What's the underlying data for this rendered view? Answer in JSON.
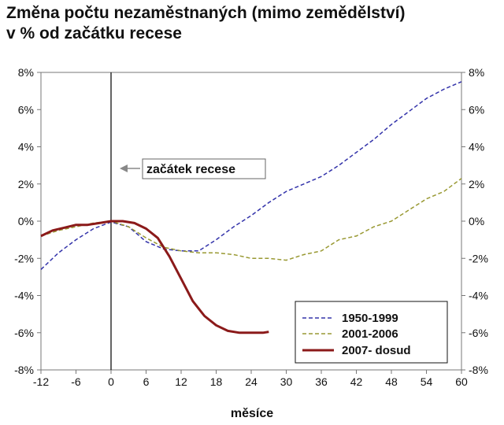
{
  "chart_data": {
    "type": "line",
    "title": "Změna počtu nezaměstnaných (mimo zemědělství)",
    "subtitle": "v % od začátku recese",
    "xlabel": "měsíce",
    "ylabel": "",
    "xlim": [
      -12,
      60
    ],
    "ylim": [
      -8,
      8
    ],
    "x_ticks": [
      -12,
      -6,
      0,
      6,
      12,
      18,
      24,
      30,
      36,
      42,
      48,
      54,
      60
    ],
    "x_tick_labels": [
      "-12",
      "-6",
      "0",
      "6",
      "12",
      "18",
      "24",
      "30",
      "36",
      "42",
      "48",
      "54",
      "60"
    ],
    "y_ticks": [
      -8,
      -6,
      -4,
      -2,
      0,
      2,
      4,
      6,
      8
    ],
    "y_tick_labels": [
      "-8%",
      "-6%",
      "-4%",
      "-2%",
      "0%",
      "2%",
      "4%",
      "6%",
      "8%"
    ],
    "grid": false,
    "legend_position": "bottom-right",
    "annotation": {
      "text": "začátek recese",
      "x": 0
    },
    "series": [
      {
        "name": "1950-1999",
        "color": "#3333aa",
        "style": "dashed",
        "x": [
          -12,
          -9,
          -6,
          -3,
          0,
          3,
          6,
          9,
          12,
          15,
          18,
          21,
          24,
          27,
          30,
          33,
          36,
          39,
          42,
          45,
          48,
          51,
          54,
          57,
          60
        ],
        "y": [
          -2.6,
          -1.7,
          -1.0,
          -0.4,
          -0.05,
          -0.3,
          -1.1,
          -1.5,
          -1.6,
          -1.6,
          -1.0,
          -0.3,
          0.3,
          1.0,
          1.6,
          2.0,
          2.4,
          3.0,
          3.7,
          4.4,
          5.2,
          5.9,
          6.6,
          7.1,
          7.5
        ]
      },
      {
        "name": "2001-2006",
        "color": "#999933",
        "style": "dashed",
        "x": [
          -12,
          -9,
          -6,
          -3,
          0,
          3,
          6,
          9,
          12,
          15,
          18,
          21,
          24,
          27,
          30,
          33,
          36,
          39,
          42,
          45,
          48,
          51,
          54,
          57,
          60
        ],
        "y": [
          -0.8,
          -0.5,
          -0.3,
          -0.1,
          0.0,
          -0.3,
          -0.9,
          -1.4,
          -1.6,
          -1.7,
          -1.7,
          -1.8,
          -2.0,
          -2.0,
          -2.1,
          -1.8,
          -1.6,
          -1.0,
          -0.8,
          -0.3,
          0.0,
          0.6,
          1.2,
          1.6,
          2.3
        ]
      },
      {
        "name": "2007- dosud",
        "color": "#8b1a1a",
        "style": "solid",
        "x": [
          -12,
          -10,
          -8,
          -6,
          -4,
          -2,
          0,
          2,
          4,
          6,
          8,
          10,
          12,
          14,
          16,
          18,
          20,
          22,
          24,
          26,
          27
        ],
        "y": [
          -0.8,
          -0.5,
          -0.35,
          -0.2,
          -0.2,
          -0.1,
          0.0,
          0.0,
          -0.1,
          -0.4,
          -0.9,
          -1.9,
          -3.1,
          -4.3,
          -5.1,
          -5.6,
          -5.9,
          -6.0,
          -6.0,
          -6.0,
          -5.95
        ]
      }
    ]
  }
}
